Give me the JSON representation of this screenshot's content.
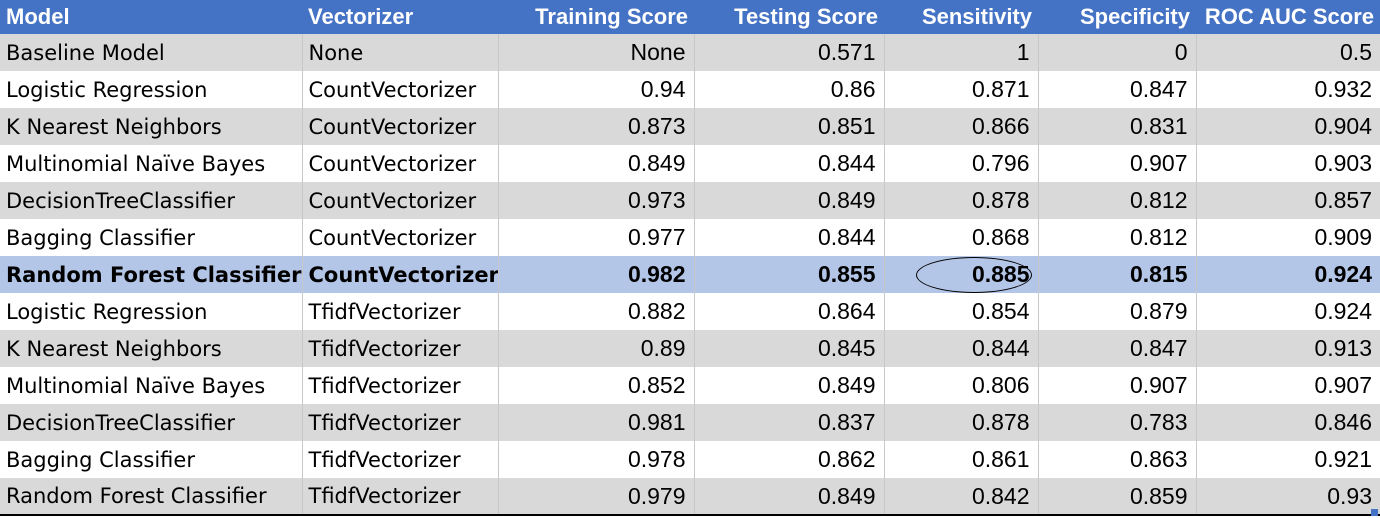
{
  "chart_data": {
    "type": "table",
    "columns": [
      "Model",
      "Vectorizer",
      "Training Score",
      "Testing Score",
      "Sensitivity",
      "Specificity",
      "ROC AUC Score"
    ],
    "rows": [
      [
        "Baseline Model",
        "None",
        "None",
        "0.571",
        "1",
        "0",
        "0.5"
      ],
      [
        "Logistic Regression",
        "CountVectorizer",
        "0.94",
        "0.86",
        "0.871",
        "0.847",
        "0.932"
      ],
      [
        "K Nearest Neighbors",
        "CountVectorizer",
        "0.873",
        "0.851",
        "0.866",
        "0.831",
        "0.904"
      ],
      [
        "Multinomial Naïve Bayes",
        "CountVectorizer",
        "0.849",
        "0.844",
        "0.796",
        "0.907",
        "0.903"
      ],
      [
        "DecisionTreeClassifier",
        "CountVectorizer",
        "0.973",
        "0.849",
        "0.878",
        "0.812",
        "0.857"
      ],
      [
        "Bagging Classifier",
        "CountVectorizer",
        "0.977",
        "0.844",
        "0.868",
        "0.812",
        "0.909"
      ],
      [
        "Random Forest Classifier",
        "CountVectorizer",
        "0.982",
        "0.855",
        "0.885",
        "0.815",
        "0.924"
      ],
      [
        "Logistic Regression",
        "TfidfVectorizer",
        "0.882",
        "0.864",
        "0.854",
        "0.879",
        "0.924"
      ],
      [
        "K Nearest Neighbors",
        "TfidfVectorizer",
        "0.89",
        "0.845",
        "0.844",
        "0.847",
        "0.913"
      ],
      [
        "Multinomial Naïve Bayes",
        "TfidfVectorizer",
        "0.852",
        "0.849",
        "0.806",
        "0.907",
        "0.907"
      ],
      [
        "DecisionTreeClassifier",
        "TfidfVectorizer",
        "0.981",
        "0.837",
        "0.878",
        "0.783",
        "0.846"
      ],
      [
        "Bagging Classifier",
        "TfidfVectorizer",
        "0.978",
        "0.862",
        "0.861",
        "0.863",
        "0.921"
      ],
      [
        "Random Forest Classifier",
        "TfidfVectorizer",
        "0.979",
        "0.849",
        "0.842",
        "0.859",
        "0.93"
      ]
    ],
    "highlighted_row": 6,
    "circled_cell": {
      "row": 6,
      "column": "Sensitivity"
    }
  },
  "colors": {
    "header_bg": "#4472c4",
    "header_text": "#ffffff",
    "band_gray": "#d9d9d9",
    "band_white": "#ffffff",
    "highlight_bg": "#b4c6e7"
  }
}
